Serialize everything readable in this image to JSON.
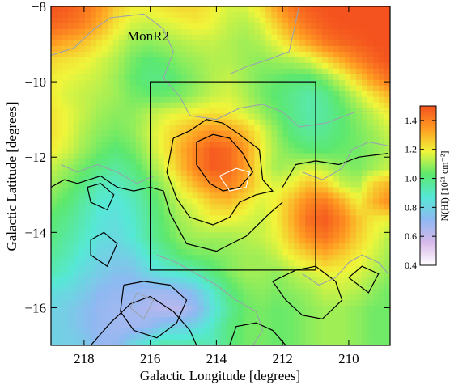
{
  "chart_data": {
    "type": "heatmap",
    "title": "",
    "xlabel": "Galactic Longitude [degrees]",
    "ylabel": "Galactic Latitude [degrees]",
    "xlim": [
      219,
      208.75
    ],
    "ylim": [
      -17,
      -8
    ],
    "x_ticks": [
      {
        "value": 218,
        "label": "218"
      },
      {
        "value": 216,
        "label": "216"
      },
      {
        "value": 214,
        "label": "214"
      },
      {
        "value": 212,
        "label": "212"
      },
      {
        "value": 210,
        "label": "210"
      }
    ],
    "y_ticks": [
      {
        "value": -8,
        "label": "−8"
      },
      {
        "value": -10,
        "label": "−10"
      },
      {
        "value": -12,
        "label": "−12"
      },
      {
        "value": -14,
        "label": "−14"
      },
      {
        "value": -16,
        "label": "−16"
      }
    ],
    "annotation": {
      "text": "MonR2",
      "l": 216.7,
      "b": -8.9
    },
    "colorbar": {
      "label": "N(HI) [10²¹ cm⁻²]",
      "range": [
        0.4,
        1.5
      ],
      "ticks": [
        {
          "value": 1.4,
          "label": "1.4"
        },
        {
          "value": 1.2,
          "label": "1.2"
        },
        {
          "value": 1.0,
          "label": "1.0"
        },
        {
          "value": 0.8,
          "label": "0.8"
        },
        {
          "value": 0.6,
          "label": "0.6"
        },
        {
          "value": 0.4,
          "label": "0.4"
        }
      ],
      "colors": [
        "#ffffff",
        "#d8b8ea",
        "#8fb8f2",
        "#56e8d6",
        "#5ce86e",
        "#f0f53a",
        "#ff9c22",
        "#f4521e"
      ]
    },
    "box": {
      "l_range": [
        216,
        211
      ],
      "b_range": [
        -10,
        -15
      ]
    },
    "grid_values_bottom_to_top": [
      [
        0.8,
        0.79,
        0.78,
        0.7,
        0.7,
        0.82,
        0.9,
        0.95,
        0.93,
        0.95,
        0.92,
        1.0,
        1.05,
        1.06,
        1.04,
        1.05,
        1.08,
        1.1,
        1.1,
        1.08,
        1.05,
        1.05
      ],
      [
        0.8,
        0.78,
        0.74,
        0.7,
        0.68,
        0.67,
        0.7,
        0.78,
        0.8,
        0.82,
        0.9,
        1.0,
        1.05,
        1.06,
        1.04,
        1.05,
        1.08,
        1.1,
        1.1,
        1.08,
        1.05,
        1.05
      ],
      [
        0.8,
        0.78,
        0.74,
        0.7,
        0.68,
        0.67,
        0.65,
        0.62,
        0.62,
        0.7,
        0.84,
        0.96,
        1.04,
        1.06,
        1.04,
        1.05,
        1.08,
        1.1,
        1.1,
        1.08,
        1.05,
        1.05
      ],
      [
        0.84,
        0.82,
        0.78,
        0.72,
        0.7,
        0.7,
        0.68,
        0.68,
        0.7,
        0.76,
        0.88,
        1.0,
        1.06,
        1.08,
        1.06,
        1.08,
        1.1,
        1.14,
        1.14,
        1.12,
        1.08,
        1.05
      ],
      [
        0.92,
        0.88,
        0.82,
        0.78,
        0.74,
        0.74,
        0.8,
        0.85,
        0.88,
        0.92,
        1.0,
        1.06,
        1.1,
        1.1,
        1.08,
        1.12,
        1.15,
        1.18,
        1.18,
        1.16,
        1.12,
        1.08
      ],
      [
        0.96,
        0.92,
        0.86,
        0.8,
        0.78,
        0.8,
        0.88,
        0.95,
        1.02,
        1.05,
        1.06,
        1.08,
        1.1,
        1.1,
        1.14,
        1.2,
        1.25,
        1.3,
        1.25,
        1.2,
        1.15,
        1.1
      ],
      [
        1.0,
        0.95,
        0.9,
        0.84,
        0.82,
        0.86,
        0.95,
        1.02,
        1.08,
        1.1,
        1.1,
        1.1,
        1.12,
        1.14,
        1.18,
        1.28,
        1.38,
        1.42,
        1.35,
        1.25,
        1.18,
        1.12
      ],
      [
        1.02,
        0.98,
        0.92,
        0.86,
        0.84,
        0.88,
        0.96,
        1.04,
        1.1,
        1.14,
        1.18,
        1.18,
        1.16,
        1.14,
        1.2,
        1.32,
        1.45,
        1.48,
        1.4,
        1.28,
        1.2,
        1.18
      ],
      [
        1.06,
        1.02,
        0.95,
        0.88,
        0.86,
        0.9,
        0.98,
        1.06,
        1.14,
        1.18,
        1.26,
        1.28,
        1.22,
        1.16,
        1.2,
        1.3,
        1.4,
        1.42,
        1.32,
        1.2,
        1.3,
        1.38
      ],
      [
        1.1,
        1.06,
        1.0,
        0.92,
        0.9,
        0.95,
        1.02,
        1.1,
        1.2,
        1.3,
        1.38,
        1.4,
        1.32,
        1.2,
        1.16,
        1.2,
        1.28,
        1.25,
        1.15,
        1.12,
        1.25,
        1.3
      ],
      [
        1.14,
        1.1,
        1.05,
        1.0,
        0.96,
        1.0,
        1.08,
        1.16,
        1.28,
        1.4,
        1.48,
        1.46,
        1.35,
        1.18,
        1.1,
        1.12,
        1.15,
        1.12,
        1.08,
        1.06,
        1.1,
        1.14
      ],
      [
        1.2,
        1.16,
        1.1,
        1.05,
        1.02,
        1.05,
        1.12,
        1.2,
        1.3,
        1.4,
        1.48,
        1.45,
        1.35,
        1.2,
        1.1,
        1.05,
        1.02,
        1.02,
        1.04,
        1.05,
        1.08,
        1.12
      ],
      [
        1.22,
        1.18,
        1.12,
        1.08,
        1.06,
        1.08,
        1.14,
        1.2,
        1.26,
        1.32,
        1.36,
        1.34,
        1.28,
        1.18,
        1.08,
        1.0,
        0.96,
        0.98,
        1.02,
        1.06,
        1.1,
        1.15
      ],
      [
        1.22,
        1.18,
        1.14,
        1.1,
        1.08,
        1.08,
        1.12,
        1.16,
        1.18,
        1.2,
        1.22,
        1.2,
        1.16,
        1.1,
        1.04,
        0.98,
        0.94,
        0.96,
        1.02,
        1.08,
        1.14,
        1.2
      ],
      [
        1.2,
        1.16,
        1.14,
        1.12,
        1.1,
        1.06,
        1.04,
        1.04,
        1.06,
        1.1,
        1.14,
        1.16,
        1.12,
        1.06,
        1.02,
        0.98,
        0.94,
        0.98,
        1.06,
        1.14,
        1.22,
        1.3
      ],
      [
        1.2,
        1.18,
        1.16,
        1.14,
        1.1,
        1.04,
        1.0,
        1.0,
        1.04,
        1.08,
        1.12,
        1.14,
        1.1,
        1.06,
        1.04,
        1.02,
        1.02,
        1.08,
        1.16,
        1.26,
        1.36,
        1.44
      ],
      [
        1.24,
        1.22,
        1.2,
        1.16,
        1.12,
        1.06,
        1.02,
        1.04,
        1.08,
        1.1,
        1.12,
        1.12,
        1.1,
        1.08,
        1.1,
        1.12,
        1.16,
        1.24,
        1.32,
        1.4,
        1.46,
        1.5
      ],
      [
        1.36,
        1.32,
        1.28,
        1.22,
        1.16,
        1.1,
        1.08,
        1.1,
        1.12,
        1.14,
        1.14,
        1.12,
        1.1,
        1.12,
        1.18,
        1.26,
        1.34,
        1.42,
        1.46,
        1.48,
        1.5,
        1.5
      ],
      [
        1.46,
        1.44,
        1.4,
        1.32,
        1.22,
        1.16,
        1.14,
        1.16,
        1.18,
        1.2,
        1.18,
        1.14,
        1.12,
        1.16,
        1.26,
        1.36,
        1.44,
        1.48,
        1.5,
        1.5,
        1.5,
        1.5
      ],
      [
        1.5,
        1.48,
        1.44,
        1.36,
        1.26,
        1.2,
        1.2,
        1.22,
        1.24,
        1.24,
        1.2,
        1.16,
        1.16,
        1.22,
        1.34,
        1.44,
        1.48,
        1.5,
        1.5,
        1.5,
        1.5,
        1.5
      ]
    ],
    "contours": [
      {
        "color": "#000000",
        "points": [
          [
            215.3,
            -11.5
          ],
          [
            214.8,
            -11.3
          ],
          [
            214.3,
            -11.0
          ],
          [
            213.8,
            -11.1
          ],
          [
            213.3,
            -11.4
          ],
          [
            212.7,
            -11.8
          ],
          [
            212.6,
            -12.6
          ],
          [
            212.3,
            -12.9
          ],
          [
            212.8,
            -13.0
          ],
          [
            213.3,
            -13.2
          ],
          [
            213.6,
            -13.6
          ],
          [
            214.1,
            -13.8
          ],
          [
            214.8,
            -13.6
          ],
          [
            215.2,
            -13.1
          ],
          [
            215.5,
            -12.4
          ],
          [
            215.3,
            -11.5
          ]
        ]
      },
      {
        "color": "#000000",
        "points": [
          [
            214.6,
            -11.6
          ],
          [
            214.1,
            -11.4
          ],
          [
            213.6,
            -11.5
          ],
          [
            213.2,
            -11.9
          ],
          [
            212.9,
            -12.4
          ],
          [
            213.3,
            -12.8
          ],
          [
            213.8,
            -12.9
          ],
          [
            214.2,
            -12.7
          ],
          [
            214.6,
            -12.2
          ],
          [
            214.6,
            -11.6
          ]
        ]
      },
      {
        "color": "#000000",
        "points": [
          [
            219.0,
            -12.8
          ],
          [
            218.6,
            -12.6
          ],
          [
            218.2,
            -12.7
          ],
          [
            217.5,
            -12.5
          ],
          [
            217.0,
            -12.8
          ],
          [
            216.5,
            -12.9
          ],
          [
            216.0,
            -12.8
          ],
          [
            215.6,
            -12.9
          ],
          [
            215.4,
            -13.5
          ],
          [
            214.9,
            -14.3
          ],
          [
            214.0,
            -14.5
          ],
          [
            213.1,
            -14.1
          ],
          [
            212.4,
            -13.5
          ],
          [
            212.0,
            -13.2
          ]
        ]
      },
      {
        "color": "#000000",
        "points": [
          [
            212.0,
            -12.8
          ],
          [
            211.6,
            -12.2
          ],
          [
            211.0,
            -12.1
          ],
          [
            210.3,
            -12.2
          ],
          [
            209.7,
            -12.0
          ],
          [
            208.8,
            -11.9
          ]
        ]
      },
      {
        "color": "#000000",
        "points": [
          [
            217.9,
            -12.8
          ],
          [
            217.5,
            -12.7
          ],
          [
            217.1,
            -13.0
          ],
          [
            217.3,
            -13.4
          ],
          [
            217.8,
            -13.2
          ],
          [
            217.9,
            -12.8
          ]
        ]
      },
      {
        "color": "#000000",
        "points": [
          [
            217.8,
            -14.2
          ],
          [
            217.4,
            -14.0
          ],
          [
            217.0,
            -14.3
          ],
          [
            217.3,
            -14.9
          ],
          [
            217.8,
            -14.6
          ],
          [
            217.8,
            -14.2
          ]
        ]
      },
      {
        "color": "#000000",
        "points": [
          [
            216.8,
            -15.4
          ],
          [
            216.2,
            -15.3
          ],
          [
            215.4,
            -15.4
          ],
          [
            214.9,
            -15.8
          ],
          [
            215.2,
            -16.4
          ],
          [
            215.8,
            -16.8
          ],
          [
            216.5,
            -16.6
          ],
          [
            216.9,
            -16.1
          ],
          [
            216.8,
            -15.4
          ]
        ]
      },
      {
        "color": "#000000",
        "points": [
          [
            217.8,
            -17.0
          ],
          [
            217.2,
            -16.4
          ],
          [
            216.6,
            -15.9
          ],
          [
            216.0,
            -15.7
          ],
          [
            215.3,
            -16.1
          ],
          [
            214.8,
            -16.6
          ],
          [
            214.6,
            -17.0
          ]
        ]
      },
      {
        "color": "#000000",
        "points": [
          [
            213.6,
            -17.0
          ],
          [
            213.4,
            -16.5
          ],
          [
            212.8,
            -16.4
          ],
          [
            212.3,
            -16.6
          ],
          [
            211.9,
            -17.0
          ]
        ]
      },
      {
        "color": "#000000",
        "points": [
          [
            212.3,
            -15.3
          ],
          [
            211.6,
            -15.0
          ],
          [
            211.0,
            -14.9
          ],
          [
            210.4,
            -15.3
          ],
          [
            210.2,
            -15.8
          ],
          [
            210.8,
            -16.3
          ],
          [
            211.4,
            -16.2
          ],
          [
            211.9,
            -15.8
          ],
          [
            212.3,
            -15.3
          ]
        ]
      },
      {
        "color": "#000000",
        "points": [
          [
            210.0,
            -15.2
          ],
          [
            209.6,
            -14.9
          ],
          [
            209.1,
            -15.1
          ],
          [
            209.4,
            -15.6
          ],
          [
            210.0,
            -15.2
          ]
        ]
      },
      {
        "color": "#ffffff",
        "points": [
          [
            213.9,
            -12.5
          ],
          [
            213.4,
            -12.3
          ],
          [
            213.0,
            -12.4
          ],
          [
            213.1,
            -12.8
          ],
          [
            213.6,
            -12.9
          ],
          [
            213.9,
            -12.5
          ]
        ]
      },
      {
        "color": "#9aa3ad",
        "points": [
          [
            219.0,
            -9.3
          ],
          [
            218.3,
            -9.1
          ],
          [
            217.7,
            -8.6
          ],
          [
            217.2,
            -8.3
          ],
          [
            216.2,
            -8.2
          ],
          [
            215.6,
            -8.6
          ],
          [
            215.3,
            -9.2
          ],
          [
            215.6,
            -9.9
          ],
          [
            215.1,
            -10.4
          ],
          [
            214.8,
            -10.9
          ],
          [
            214.0,
            -11.0
          ],
          [
            213.3,
            -10.7
          ],
          [
            212.6,
            -10.6
          ],
          [
            212.0,
            -10.8
          ],
          [
            211.5,
            -11.2
          ],
          [
            210.7,
            -11.1
          ],
          [
            209.8,
            -10.8
          ],
          [
            208.8,
            -10.8
          ]
        ]
      },
      {
        "color": "#9aa3ad",
        "points": [
          [
            213.6,
            -9.8
          ],
          [
            213.1,
            -9.6
          ],
          [
            212.4,
            -9.4
          ],
          [
            211.8,
            -9.2
          ],
          [
            211.5,
            -8.0
          ]
        ]
      },
      {
        "color": "#9aa3ad",
        "points": [
          [
            211.4,
            -12.4
          ],
          [
            210.8,
            -12.6
          ],
          [
            210.2,
            -12.3
          ],
          [
            209.9,
            -11.8
          ],
          [
            209.4,
            -11.6
          ],
          [
            208.8,
            -11.7
          ]
        ]
      },
      {
        "color": "#9aa3ad",
        "points": [
          [
            218.7,
            -12.2
          ],
          [
            218.2,
            -12.4
          ],
          [
            217.6,
            -12.2
          ],
          [
            217.0,
            -12.4
          ],
          [
            216.4,
            -12.7
          ],
          [
            215.9,
            -12.5
          ]
        ]
      },
      {
        "color": "#9aa3ad",
        "points": [
          [
            215.8,
            -14.6
          ],
          [
            215.2,
            -14.8
          ],
          [
            214.6,
            -15.1
          ],
          [
            214.0,
            -15.4
          ],
          [
            213.4,
            -15.8
          ],
          [
            212.8,
            -16.1
          ],
          [
            212.6,
            -16.6
          ],
          [
            212.9,
            -17.0
          ]
        ]
      },
      {
        "color": "#9aa3ad",
        "points": [
          [
            216.4,
            -15.6
          ],
          [
            216.6,
            -16.0
          ],
          [
            216.2,
            -16.3
          ],
          [
            215.9,
            -15.8
          ],
          [
            216.4,
            -15.6
          ]
        ]
      },
      {
        "color": "#9aa3ad",
        "points": [
          [
            211.4,
            -15.1
          ],
          [
            210.9,
            -15.4
          ],
          [
            210.4,
            -15.2
          ],
          [
            210.0,
            -14.8
          ],
          [
            209.6,
            -14.6
          ],
          [
            209.1,
            -14.8
          ],
          [
            208.8,
            -15.1
          ]
        ]
      }
    ]
  }
}
